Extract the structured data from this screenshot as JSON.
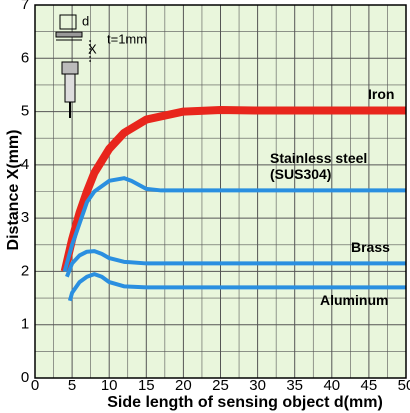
{
  "chart_data": {
    "type": "line",
    "y_label": "Distance X(mm)",
    "x_label": "Side length of sensing object d(mm)",
    "xlim": [
      0,
      50
    ],
    "xticks": [
      0,
      5,
      10,
      15,
      20,
      25,
      30,
      35,
      40,
      45,
      50
    ],
    "ylim": [
      0,
      7
    ],
    "yticks": [
      0,
      1,
      2,
      3,
      4,
      5,
      6,
      7
    ],
    "grid": true,
    "inset": {
      "labels": [
        "d",
        "X",
        "t=1mm"
      ]
    },
    "series": [
      {
        "name": "Iron",
        "color": "#e8261c",
        "x": [
          4,
          5,
          6,
          7,
          8,
          10,
          12,
          15,
          20,
          25,
          30,
          40,
          50
        ],
        "values": [
          2.0,
          2.6,
          3.1,
          3.5,
          3.85,
          4.3,
          4.6,
          4.85,
          5.0,
          5.03,
          5.02,
          5.02,
          5.02
        ]
      },
      {
        "name": "Stainless steel\n(SUS304)",
        "color": "#2a8fe0",
        "x": [
          4,
          5,
          6,
          7,
          8,
          10,
          12,
          13,
          15,
          17,
          20,
          30,
          50
        ],
        "values": [
          2.0,
          2.5,
          2.9,
          3.3,
          3.5,
          3.7,
          3.75,
          3.7,
          3.55,
          3.52,
          3.52,
          3.52,
          3.52
        ]
      },
      {
        "name": "Brass",
        "color": "#2a8fe0",
        "x": [
          4.3,
          5,
          6,
          7,
          8,
          9,
          10,
          12,
          15,
          20,
          50
        ],
        "values": [
          1.9,
          2.15,
          2.3,
          2.37,
          2.38,
          2.33,
          2.25,
          2.18,
          2.15,
          2.15,
          2.15
        ]
      },
      {
        "name": "Aluminum",
        "color": "#2a8fe0",
        "x": [
          4.7,
          5,
          6,
          7,
          8,
          9,
          10,
          12,
          15,
          20,
          50
        ],
        "values": [
          1.45,
          1.6,
          1.8,
          1.9,
          1.95,
          1.9,
          1.8,
          1.72,
          1.7,
          1.7,
          1.7
        ]
      }
    ]
  }
}
